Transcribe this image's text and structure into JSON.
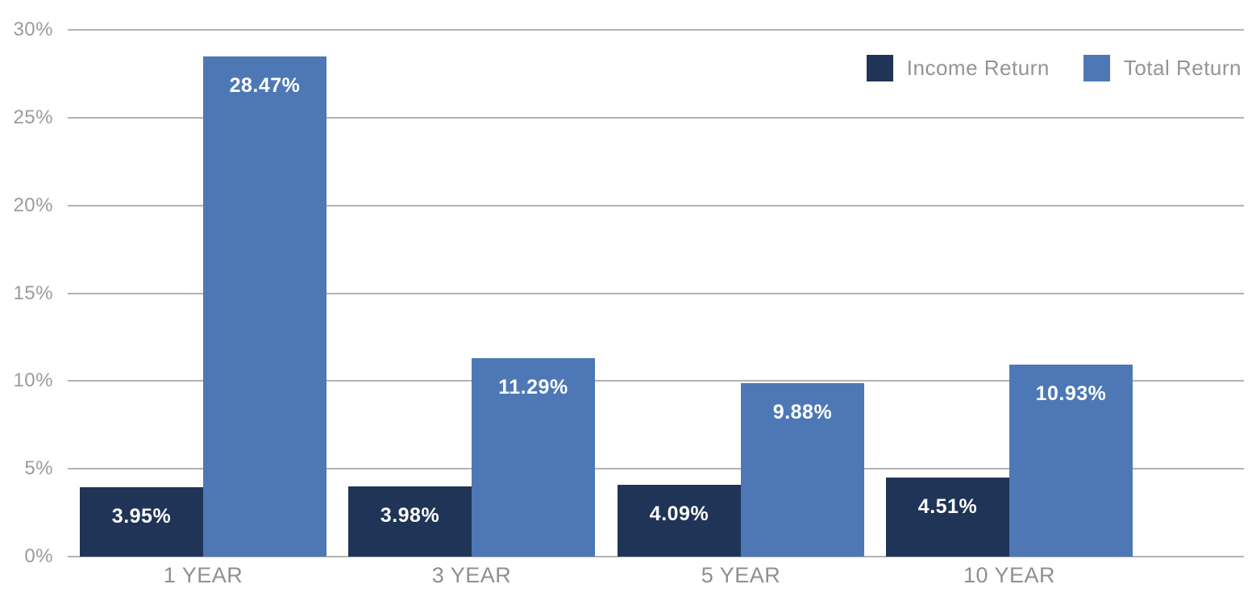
{
  "chart_data": {
    "type": "bar",
    "title": "",
    "categories": [
      "1 YEAR",
      "3 YEAR",
      "5 YEAR",
      "10 YEAR"
    ],
    "series": [
      {
        "name": "Income Return",
        "color": "#1f3456",
        "values": [
          3.95,
          3.98,
          4.09,
          4.51
        ],
        "labels": [
          "3.95%",
          "3.98%",
          "4.09%",
          "4.51%"
        ]
      },
      {
        "name": "Total Return",
        "color": "#4d78b5",
        "values": [
          28.47,
          11.29,
          9.88,
          10.93
        ],
        "labels": [
          "28.47%",
          "11.29%",
          "9.88%",
          "10.93%"
        ]
      }
    ],
    "xlabel": "",
    "ylabel": "",
    "ylim": [
      0,
      30
    ],
    "ytick_step": 5,
    "ytick_labels": [
      "0%",
      "5%",
      "10%",
      "15%",
      "20%",
      "25%",
      "30%"
    ],
    "grid": true,
    "gridline_color": "#b2b2b2",
    "axis_text_color": "#9b9b9b",
    "value_label_color": "#ffffff",
    "legend_position": "top-right"
  }
}
